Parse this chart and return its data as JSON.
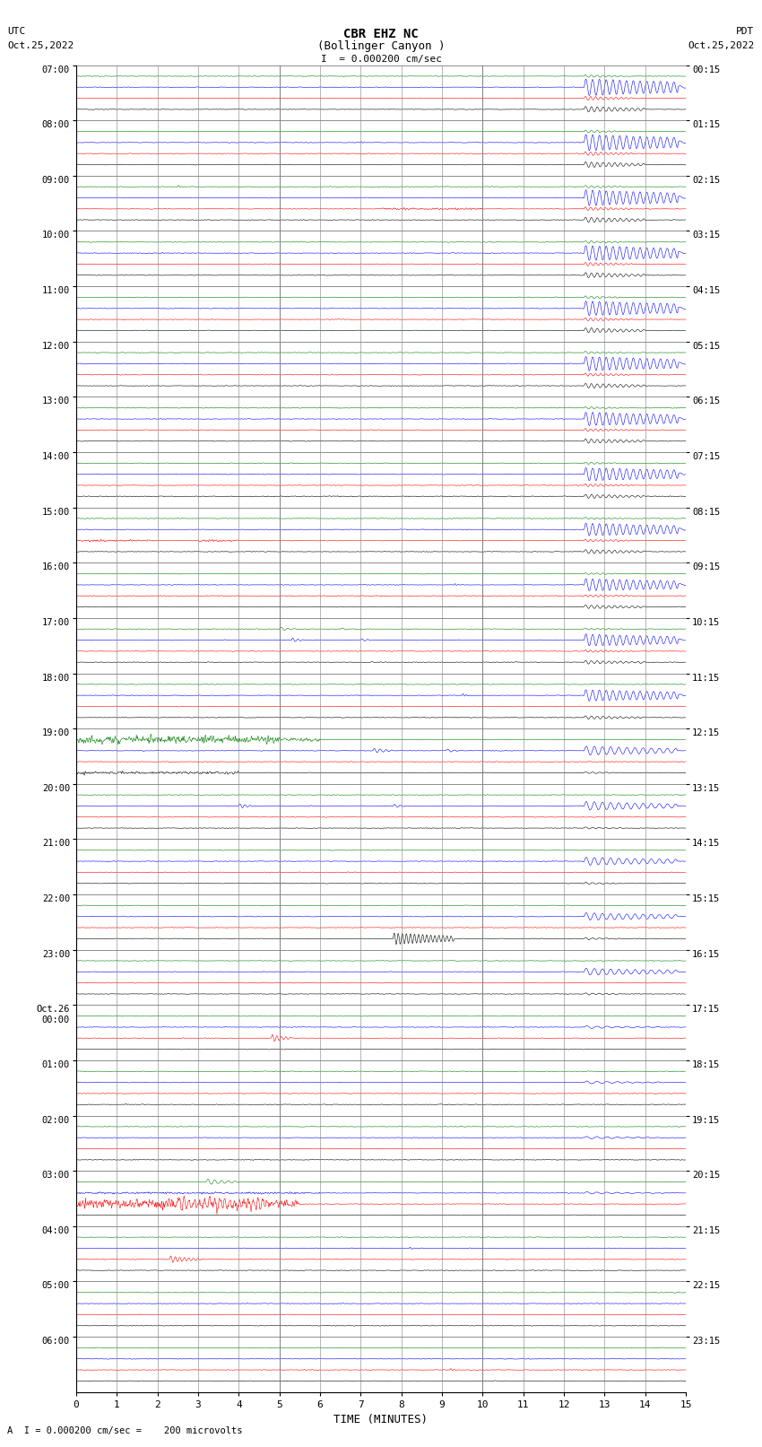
{
  "title_line1": "CBR EHZ NC",
  "title_line2": "(Bollinger Canyon )",
  "scale_label": "I = 0.000200 cm/sec",
  "left_date_line1": "UTC",
  "left_date_line2": "Oct.25,2022",
  "right_date_line1": "PDT",
  "right_date_line2": "Oct.25,2022",
  "bottom_label": "TIME (MINUTES)",
  "scale_note": "A  I = 0.000200 cm/sec =    200 microvolts",
  "xlabel_ticks": [
    0,
    1,
    2,
    3,
    4,
    5,
    6,
    7,
    8,
    9,
    10,
    11,
    12,
    13,
    14,
    15
  ],
  "xlim": [
    0,
    15
  ],
  "background_color": "#ffffff",
  "colors_cycle": [
    "black",
    "red",
    "blue",
    "green"
  ],
  "utc_labels": [
    "07:00",
    "08:00",
    "09:00",
    "10:00",
    "11:00",
    "12:00",
    "13:00",
    "14:00",
    "15:00",
    "16:00",
    "17:00",
    "18:00",
    "19:00",
    "20:00",
    "21:00",
    "22:00",
    "23:00",
    "Oct.26\n00:00",
    "01:00",
    "02:00",
    "03:00",
    "04:00",
    "05:00",
    "06:00"
  ],
  "pdt_labels": [
    "00:15",
    "01:15",
    "02:15",
    "03:15",
    "04:15",
    "05:15",
    "06:15",
    "07:15",
    "08:15",
    "09:15",
    "10:15",
    "11:15",
    "12:15",
    "13:15",
    "14:15",
    "15:15",
    "16:15",
    "17:15",
    "18:15",
    "19:15",
    "20:15",
    "21:15",
    "22:15",
    "23:15"
  ],
  "n_rows": 24,
  "n_traces_per_row": 4,
  "minutes_per_row": 15,
  "samples_per_minute": 100,
  "grid_color": "#808080",
  "noise_amplitude": 0.025,
  "trace_scale": 0.18
}
